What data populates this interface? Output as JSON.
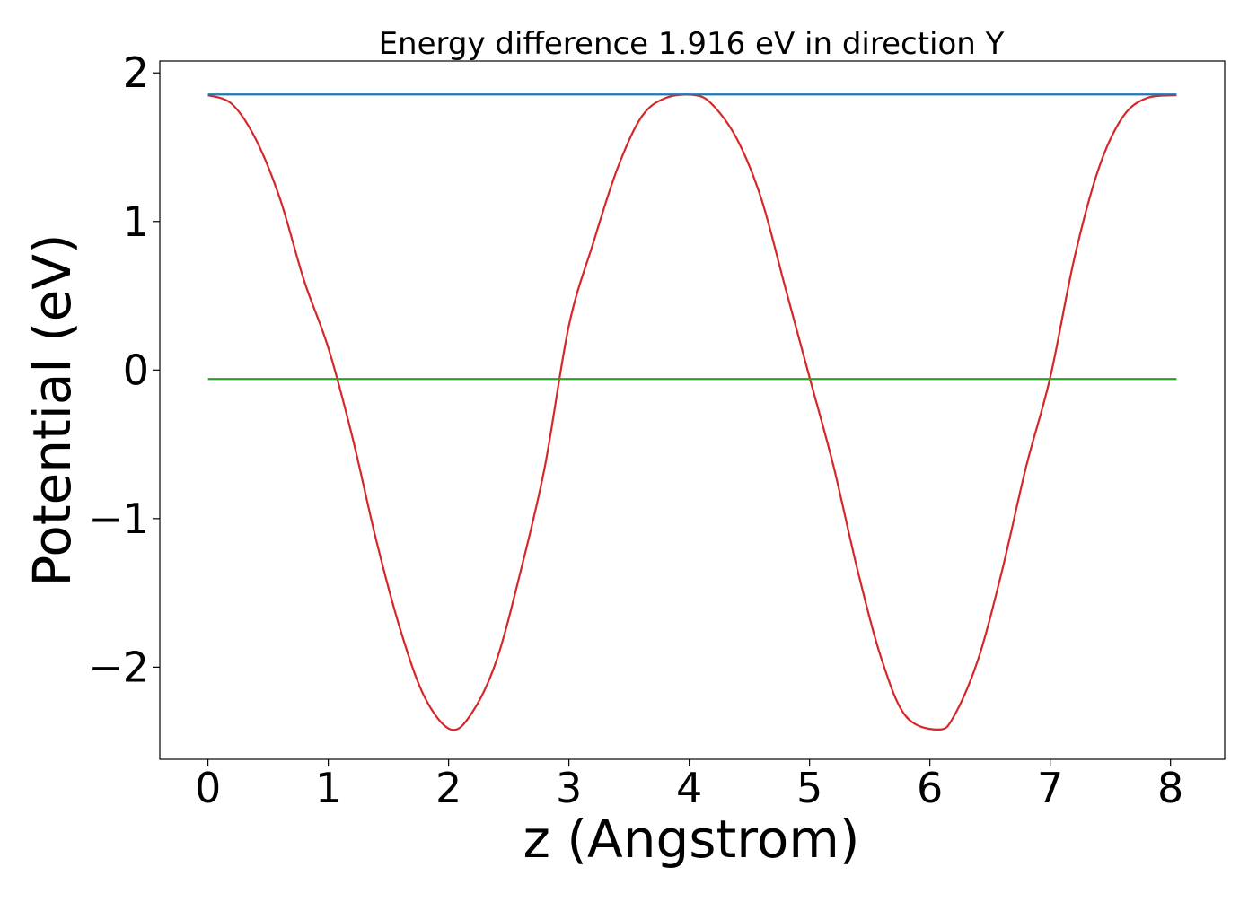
{
  "chart_data": {
    "type": "line",
    "title": "Energy difference 1.916 eV in direction Y",
    "xlabel": "z (Angstrom)",
    "ylabel": "Potential (eV)",
    "xlim": [
      -0.4,
      8.45
    ],
    "ylim": [
      -2.62,
      2.08
    ],
    "x_ticks": [
      0,
      1,
      2,
      3,
      4,
      5,
      6,
      7,
      8
    ],
    "x_tick_labels": [
      "0",
      "1",
      "2",
      "3",
      "4",
      "5",
      "6",
      "7",
      "8"
    ],
    "y_ticks": [
      -2,
      -1,
      0,
      1,
      2
    ],
    "y_tick_labels": [
      "−2",
      "−1",
      "0",
      "1",
      "2"
    ],
    "grid": false,
    "legend": "none",
    "series": [
      {
        "color": "#d62728",
        "x": [
          0,
          0.2,
          0.4,
          0.6,
          0.8,
          1.0,
          1.2,
          1.4,
          1.6,
          1.8,
          2.02,
          2.2,
          2.4,
          2.6,
          2.8,
          3.0,
          3.2,
          3.4,
          3.6,
          3.8,
          4.05,
          4.2,
          4.4,
          4.6,
          4.8,
          5.0,
          5.2,
          5.4,
          5.6,
          5.8,
          6.07,
          6.2,
          6.4,
          6.6,
          6.8,
          7.0,
          7.2,
          7.4,
          7.6,
          7.8,
          8.05
        ],
        "y": [
          1.85,
          1.79,
          1.55,
          1.15,
          0.6,
          0.15,
          -0.45,
          -1.15,
          -1.75,
          -2.2,
          -2.42,
          -2.3,
          -1.95,
          -1.35,
          -0.65,
          0.3,
          0.85,
          1.35,
          1.7,
          1.83,
          1.85,
          1.78,
          1.55,
          1.15,
          0.55,
          -0.05,
          -0.65,
          -1.35,
          -1.95,
          -2.33,
          -2.42,
          -2.33,
          -1.95,
          -1.35,
          -0.65,
          -0.05,
          0.75,
          1.35,
          1.7,
          1.83,
          1.85
        ]
      },
      {
        "color": "#1f77b4",
        "x": [
          0,
          8.05
        ],
        "y": [
          1.855,
          1.855
        ]
      },
      {
        "color": "#2ca02c",
        "x": [
          0,
          8.05
        ],
        "y": [
          -0.06,
          -0.06
        ]
      }
    ]
  }
}
